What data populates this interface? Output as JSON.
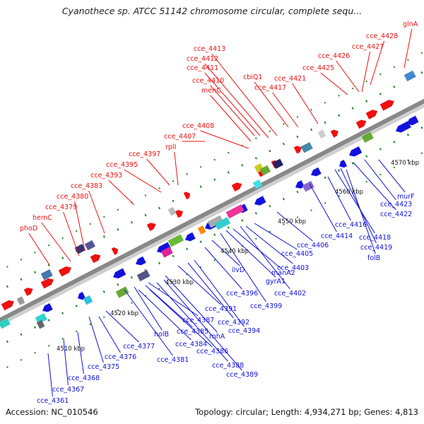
{
  "title": "Cyanothece sp. ATCC 51142 chromosome circular, complete sequ...",
  "footer": {
    "accession": "Accession: NC_010546",
    "summary": "Topology: circular; Length: 4,934,271 bp; Genes: 4,813"
  },
  "colors": {
    "forward_strand": "#ee1111",
    "reverse_strand": "#1111dd",
    "backbone": "#888888",
    "tick": "#228822"
  },
  "scale_labels": [
    "4510 kbp",
    "4520 kbp",
    "4530 kbp",
    "4540 kbp",
    "4550 kbp",
    "4560 kbp",
    "4570 kbp"
  ],
  "forward_labels": [
    "phoD",
    "hemC",
    "cce_4379",
    "cce_4380",
    "cce_4383",
    "cce_4393",
    "cce_4395",
    "cce_4397",
    "rplI",
    "cce_4407",
    "cce_4408",
    "menC",
    "cce_4410",
    "cce_4411",
    "cce_4412",
    "cce_4413",
    "cbiQ1",
    "cce_4417",
    "cce_4421",
    "cce_4425",
    "cce_4426",
    "cce_4427",
    "cce_4428",
    "glnA"
  ],
  "reverse_labels": [
    "cce_4361",
    "cce_4367",
    "cce_4368",
    "cce_4375",
    "cce_4376",
    "cce_4377",
    "cce_4381",
    "holB",
    "cce_4384",
    "cce_4385",
    "cce_4387",
    "cce_4386",
    "cce_4388",
    "cce_4389",
    "rnhA",
    "cce_4391",
    "cce_4392",
    "cce_4394",
    "cce_4396",
    "ilvD",
    "cce_4399",
    "gyrA1",
    "manA2",
    "cce_4402",
    "cce_4403",
    "cce_4405",
    "cce_4406",
    "cce_4414",
    "cce_4416",
    "cce_4418",
    "cce_4419",
    "folB",
    "cce_4422",
    "cce_4423",
    "murF"
  ]
}
